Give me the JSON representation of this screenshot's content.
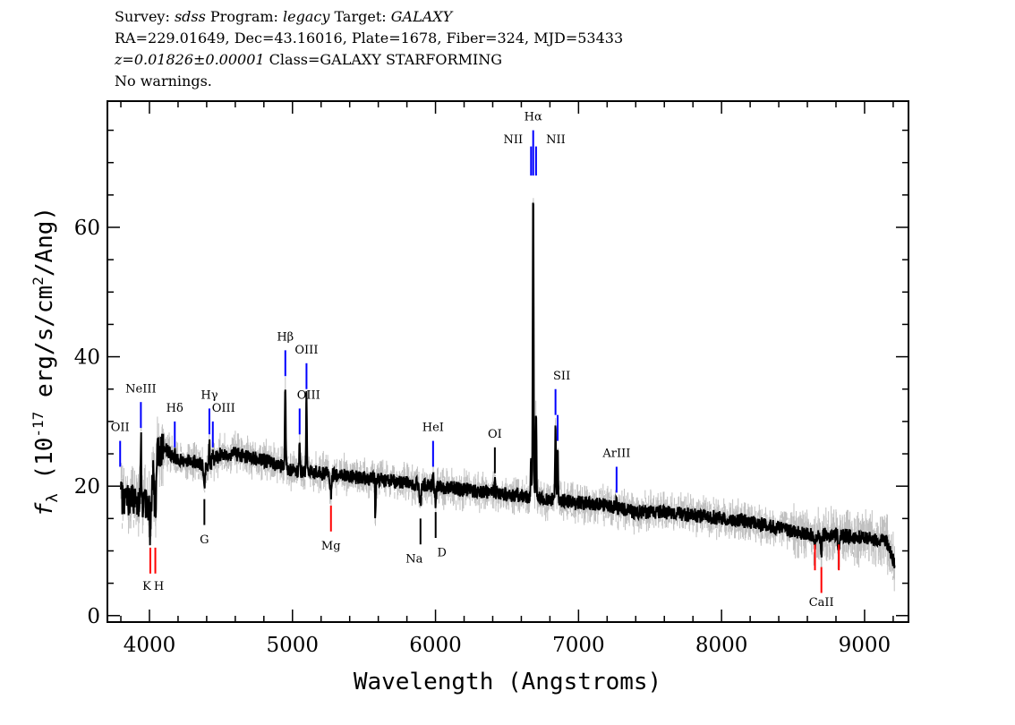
{
  "header": {
    "line1": [
      {
        "t": "Survey: ",
        "i": false
      },
      {
        "t": "sdss",
        "i": true
      },
      {
        "t": " Program: ",
        "i": false
      },
      {
        "t": "legacy",
        "i": true
      },
      {
        "t": " Target: ",
        "i": false
      },
      {
        "t": "GALAXY",
        "i": true
      }
    ],
    "line2": "RA=229.01649, Dec=43.16016, Plate=1678, Fiber=324, MJD=53433",
    "line3_italic": "z=0.01826±0.00001",
    "line3_rest": " Class=GALAXY STARFORMING",
    "line4": "No warnings."
  },
  "chart_data": {
    "type": "line",
    "xlabel": "Wavelength (Angstroms)",
    "ylabel_main": "f",
    "ylabel_sub": "λ",
    "ylabel_rest1": " (10",
    "ylabel_sup1": "-17",
    "ylabel_rest2": " erg/s/cm",
    "ylabel_sup2": "2",
    "ylabel_rest3": "/Ang)",
    "xlim": [
      3706,
      9307
    ],
    "ylim": [
      -1,
      79.5
    ],
    "xticks": [
      4000,
      5000,
      6000,
      7000,
      8000,
      9000
    ],
    "yticks": [
      0,
      20,
      40,
      60
    ],
    "x_minor_step": 200,
    "y_minor_step": 5,
    "data_range": [
      3800,
      9210
    ],
    "colors": {
      "spectrum": "#000000",
      "error": "#c0c0c0",
      "emission": "#0000ff",
      "absorption": "#ff0000",
      "other": "#000000"
    },
    "continuum": [
      [
        3800,
        18
      ],
      [
        3900,
        18
      ],
      [
        3990,
        17
      ],
      [
        4050,
        25
      ],
      [
        4100,
        26
      ],
      [
        4200,
        24
      ],
      [
        4300,
        24
      ],
      [
        4400,
        23
      ],
      [
        4500,
        25
      ],
      [
        4600,
        25
      ],
      [
        4800,
        24
      ],
      [
        5000,
        22.5
      ],
      [
        5200,
        22
      ],
      [
        5400,
        21.5
      ],
      [
        5600,
        21
      ],
      [
        5800,
        20.5
      ],
      [
        6000,
        20
      ],
      [
        6200,
        19.5
      ],
      [
        6400,
        19
      ],
      [
        6600,
        18.5
      ],
      [
        6800,
        18
      ],
      [
        7000,
        17.5
      ],
      [
        7200,
        17
      ],
      [
        7400,
        16
      ],
      [
        7600,
        16
      ],
      [
        7800,
        15.5
      ],
      [
        8000,
        15
      ],
      [
        8200,
        14.5
      ],
      [
        8400,
        13.5
      ],
      [
        8600,
        12.5
      ],
      [
        8800,
        12.5
      ],
      [
        9000,
        12
      ],
      [
        9150,
        11.5
      ],
      [
        9210,
        8
      ]
    ],
    "features": [
      {
        "label": "OII",
        "wave": 3795,
        "kind": "emission",
        "peak": 22
      },
      {
        "label": "NeIII",
        "wave": 3940,
        "kind": "emission",
        "peak": 28
      },
      {
        "label": "Hδ",
        "wave": 4177,
        "kind": "emission",
        "peak": 25
      },
      {
        "label": "Hγ",
        "wave": 4419,
        "kind": "emission",
        "peak": 27
      },
      {
        "label": "OIII",
        "wave": 4443,
        "kind": "emission",
        "peak": 25
      },
      {
        "label": "Hβ",
        "wave": 4950,
        "kind": "emission",
        "peak": 36
      },
      {
        "label": "OIII",
        "wave": 5050,
        "kind": "emission",
        "peak": 27
      },
      {
        "label": "OIII",
        "wave": 5098,
        "kind": "emission",
        "peak": 34
      },
      {
        "label": "HeI",
        "wave": 5983,
        "kind": "emission",
        "peak": 22
      },
      {
        "label": "OI",
        "wave": 6415,
        "kind": "other_emission",
        "peak": 21
      },
      {
        "label": "NII",
        "wave": 6668,
        "kind": "emission",
        "peak": 24
      },
      {
        "label": "Hα",
        "wave": 6683,
        "kind": "emission",
        "peak": 67
      },
      {
        "label": "NII",
        "wave": 6703,
        "kind": "emission",
        "peak": 32
      },
      {
        "label": "SII",
        "wave": 6839,
        "kind": "emission",
        "peak": 30
      },
      {
        "label": "",
        "wave": 6854,
        "kind": "emission",
        "peak": 26
      },
      {
        "label": "ArIII",
        "wave": 7266,
        "kind": "emission",
        "peak": 18
      },
      {
        "label": "K",
        "wave": 4006,
        "kind": "absorption",
        "peak": 12
      },
      {
        "label": "H",
        "wave": 4041,
        "kind": "absorption",
        "peak": 12
      },
      {
        "label": "G",
        "wave": 4384,
        "kind": "other_absorption",
        "peak": 19
      },
      {
        "label": "Mg",
        "wave": 5269,
        "kind": "absorption",
        "peak": 18
      },
      {
        "label": "Na",
        "wave": 5895,
        "kind": "other_absorption",
        "peak": 16
      },
      {
        "label": "D",
        "wave": 6001,
        "kind": "other_absorption",
        "peak": 17
      },
      {
        "label": "",
        "wave": 8653,
        "kind": "absorption",
        "peak": 10
      },
      {
        "label": "CaII",
        "wave": 8698,
        "kind": "absorption",
        "peak": 9
      },
      {
        "label": "",
        "wave": 8820,
        "kind": "absorption",
        "peak": 9.5
      }
    ]
  }
}
